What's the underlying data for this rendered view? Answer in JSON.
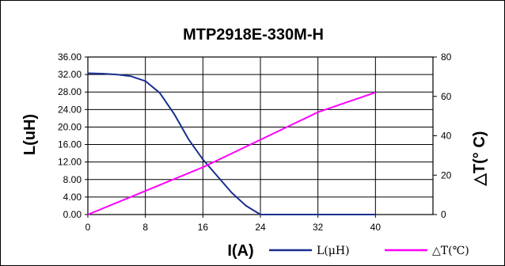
{
  "chart_data": {
    "type": "line",
    "title": "MTP2918E-330M-H",
    "xlabel": "I(A)",
    "ylabel": "L(uH)",
    "y2label": "△T(° C)",
    "xlim": [
      0,
      48
    ],
    "ylim": [
      0,
      36
    ],
    "y2lim": [
      0,
      80
    ],
    "x_ticks": [
      "0",
      "8",
      "16",
      "24",
      "32",
      "40"
    ],
    "y_ticks": [
      "0.00",
      "4.00",
      "8.00",
      "12.00",
      "16.00",
      "20.00",
      "24.00",
      "28.00",
      "32.00",
      "36.00"
    ],
    "y2_ticks": [
      "0",
      "20",
      "40",
      "60",
      "80"
    ],
    "grid": true,
    "legend_position": "bottom-right",
    "series": [
      {
        "name": "L(μH)",
        "axis": "left",
        "color": "#1a2f8f",
        "x": [
          0,
          2,
          4,
          6,
          8,
          10,
          12,
          14,
          16,
          18,
          20,
          22,
          24,
          26,
          28,
          32,
          36,
          40
        ],
        "y": [
          32.3,
          32.2,
          32.0,
          31.6,
          30.5,
          27.8,
          23.0,
          17.2,
          12.6,
          8.8,
          5.0,
          2.0,
          0.0,
          0.0,
          0.0,
          0.0,
          0.0,
          0.0
        ]
      },
      {
        "name": "△T(℃)",
        "axis": "right",
        "color": "#ff00ff",
        "x": [
          0,
          4,
          8,
          12,
          16,
          20,
          24,
          28,
          32,
          36,
          40
        ],
        "y": [
          0,
          6,
          12,
          18,
          24,
          31,
          38,
          45,
          52,
          57,
          62
        ]
      }
    ]
  }
}
